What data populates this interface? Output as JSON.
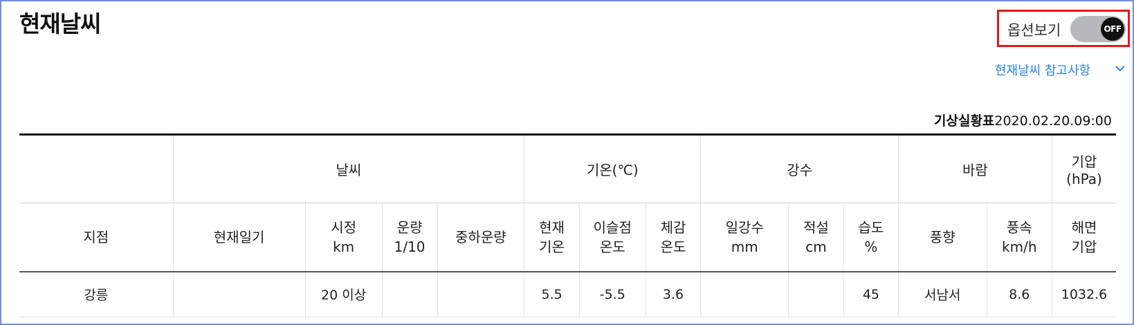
{
  "page": {
    "title": "현재날씨"
  },
  "options": {
    "label": "옵션보기",
    "toggle_state": "OFF"
  },
  "reference_link": "현재날씨 참고사항",
  "source": {
    "prefix": "기상실황표",
    "datetime": "2020.02.20.09:00"
  },
  "table": {
    "group_headers": [
      "",
      "날씨",
      "기온(℃)",
      "강수",
      "바람",
      "기압\n(hPa)"
    ],
    "column_headers": [
      "지점",
      "현재일기",
      "시정\nkm",
      "운량\n1/10",
      "중하운량",
      "현재\n기온",
      "이슬점\n온도",
      "체감\n온도",
      "일강수\nmm",
      "적설\ncm",
      "습도\n%",
      "풍향",
      "풍속\nkm/h",
      "해면\n기압"
    ],
    "rows": [
      [
        "강릉",
        "",
        "20 이상",
        "",
        "",
        "5.5",
        "-5.5",
        "3.6",
        "",
        "",
        "45",
        "서남서",
        "8.6",
        "1032.6"
      ]
    ]
  },
  "colors": {
    "accent_link": "#2a82e4",
    "highlight_border": "#e8151b",
    "toggle_track": "#b7b9be",
    "toggle_knob": "#111111"
  }
}
